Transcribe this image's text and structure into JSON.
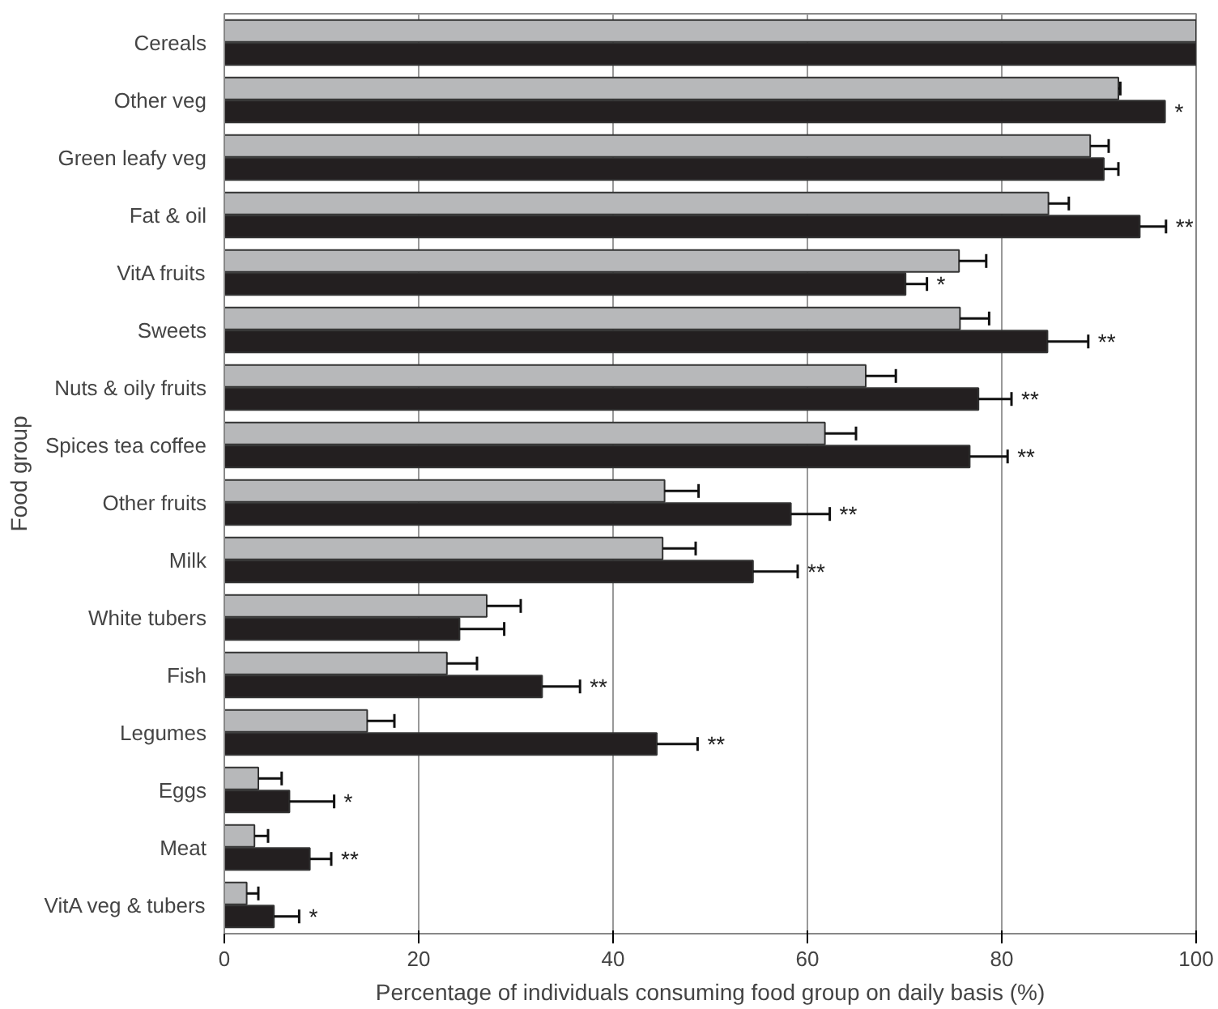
{
  "chart_data": {
    "type": "bar",
    "orientation": "horizontal",
    "xlabel": "Percentage of individuals consuming food group on daily basis (%)",
    "ylabel": "Food group",
    "categories": [
      "Cereals",
      "Other veg",
      "Green leafy veg",
      "Fat & oil",
      "VitA fruits",
      "Sweets",
      "Nuts & oily fruits",
      "Spices tea coffee",
      "Other fruits",
      "Milk",
      "White tubers",
      "Fish",
      "Legumes",
      "Eggs",
      "Meat",
      "VitA veg & tubers"
    ],
    "series": [
      {
        "color": "#b7b8ba",
        "values": [
          100,
          92.0,
          89.1,
          84.8,
          75.6,
          75.7,
          66.0,
          61.8,
          45.3,
          45.1,
          27.0,
          22.9,
          14.7,
          3.5,
          3.1,
          2.3
        ],
        "errors": [
          null,
          [
            92.0,
            92.2
          ],
          [
            89.1,
            91.0
          ],
          [
            84.8,
            86.9
          ],
          [
            75.6,
            78.4
          ],
          [
            75.7,
            78.7
          ],
          [
            66.0,
            69.1
          ],
          [
            61.8,
            65.0
          ],
          [
            45.3,
            48.8
          ],
          [
            45.1,
            48.5
          ],
          [
            27.0,
            30.5
          ],
          [
            22.9,
            26.0
          ],
          [
            14.7,
            17.5
          ],
          [
            3.5,
            5.9
          ],
          [
            3.1,
            4.5
          ],
          [
            2.3,
            3.5
          ]
        ]
      },
      {
        "color": "#231f20",
        "values": [
          100,
          96.8,
          90.5,
          94.2,
          70.1,
          84.7,
          77.6,
          76.7,
          58.3,
          54.4,
          24.2,
          32.7,
          44.5,
          6.7,
          8.8,
          5.1
        ],
        "errors": [
          null,
          null,
          [
            90.5,
            92.0
          ],
          [
            94.2,
            96.9
          ],
          [
            70.1,
            72.3
          ],
          [
            84.7,
            88.9
          ],
          [
            77.6,
            81.0
          ],
          [
            76.7,
            80.6
          ],
          [
            58.3,
            62.3
          ],
          [
            54.4,
            59.0
          ],
          [
            24.2,
            28.8
          ],
          [
            32.7,
            36.6
          ],
          [
            44.5,
            48.7
          ],
          [
            6.7,
            11.3
          ],
          [
            8.8,
            11.0
          ],
          [
            5.1,
            7.7
          ]
        ]
      }
    ],
    "annotations": [
      {
        "text": "*",
        "x": 96.8,
        "y": "Other veg"
      },
      {
        "text": "**",
        "x": 96.9,
        "y": "Fat & oil"
      },
      {
        "text": "*",
        "x": 72.3,
        "y": "VitA fruits"
      },
      {
        "text": "**",
        "x": 88.9,
        "y": "Sweets"
      },
      {
        "text": "**",
        "x": 81.0,
        "y": "Nuts & oily fruits"
      },
      {
        "text": "**",
        "x": 80.6,
        "y": "Spices tea coffee"
      },
      {
        "text": "**",
        "x": 62.3,
        "y": "Other fruits"
      },
      {
        "text": "**",
        "x": 59.0,
        "y": "Milk"
      },
      {
        "text": "**",
        "x": 36.6,
        "y": "Fish"
      },
      {
        "text": "**",
        "x": 48.7,
        "y": "Legumes"
      },
      {
        "text": "*",
        "x": 11.3,
        "y": "Eggs"
      },
      {
        "text": "**",
        "x": 11.0,
        "y": "Meat"
      },
      {
        "text": "*",
        "x": 7.7,
        "y": "VitA veg & tubers"
      }
    ],
    "xlim": [
      0,
      100
    ],
    "xticks": [
      0,
      20,
      40,
      60,
      80,
      100
    ],
    "grid": "x"
  }
}
